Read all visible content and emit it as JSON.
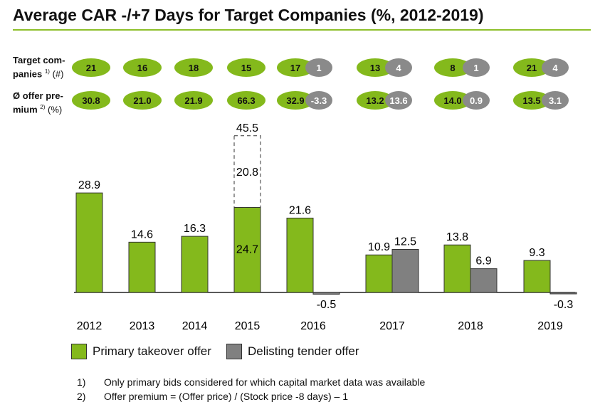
{
  "title": "Average CAR -/+7 Days for Target Companies (%, 2012-2019)",
  "rows": {
    "companies_label": "Target com- panies",
    "companies_sup": "1)",
    "companies_unit": "(#)",
    "premium_label": "Ø offer pre- mium",
    "premium_sup": "2)",
    "premium_unit": "(%)"
  },
  "colors": {
    "primary": "#84b91c",
    "delisting": "#808080",
    "rule": "#8dbf2a"
  },
  "chart_data": {
    "type": "bar",
    "categories": [
      "2012",
      "2013",
      "2014",
      "2015",
      "2016",
      "2017",
      "2018",
      "2019"
    ],
    "series": [
      {
        "name": "Primary takeover offer",
        "values": [
          28.9,
          14.6,
          16.3,
          24.7,
          21.6,
          10.9,
          13.8,
          9.3
        ],
        "labels": [
          "28.9",
          "14.6",
          "16.3",
          "24.7",
          "21.6",
          "10.9",
          "13.8",
          "9.3"
        ]
      },
      {
        "name": "Delisting tender offer",
        "values": [
          null,
          null,
          null,
          null,
          -0.5,
          12.5,
          6.9,
          -0.3
        ],
        "labels": [
          "",
          "",
          "",
          "",
          "-0.5",
          "12.5",
          "6.9",
          "-0.3"
        ]
      }
    ],
    "stacked_extension": {
      "category": "2015",
      "value": 20.8,
      "total": 45.5,
      "label": "20.8",
      "total_label": "45.5"
    },
    "target_companies": {
      "primary": [
        "21",
        "16",
        "18",
        "15",
        "17",
        "13",
        "8",
        "21"
      ],
      "delisting": [
        "",
        "",
        "",
        "",
        "1",
        "4",
        "1",
        "4"
      ]
    },
    "offer_premium": {
      "primary": [
        "30.8",
        "21.0",
        "21.9",
        "66.3",
        "32.9",
        "13.2",
        "14.0",
        "13.5"
      ],
      "delisting": [
        "",
        "",
        "",
        "",
        "-3.3",
        "13.6",
        "0.9",
        "3.1"
      ]
    },
    "ylim": [
      -2,
      47
    ],
    "legend_position": "bottom-left"
  },
  "legend": {
    "primary_label": "Primary takeover offer",
    "delisting_label": "Delisting tender offer"
  },
  "footnotes": [
    {
      "num": "1)",
      "text": "Only primary bids considered for which capital market data was available"
    },
    {
      "num": "2)",
      "text": "Offer premium = (Offer price) / (Stock price -8 days) – 1"
    }
  ]
}
